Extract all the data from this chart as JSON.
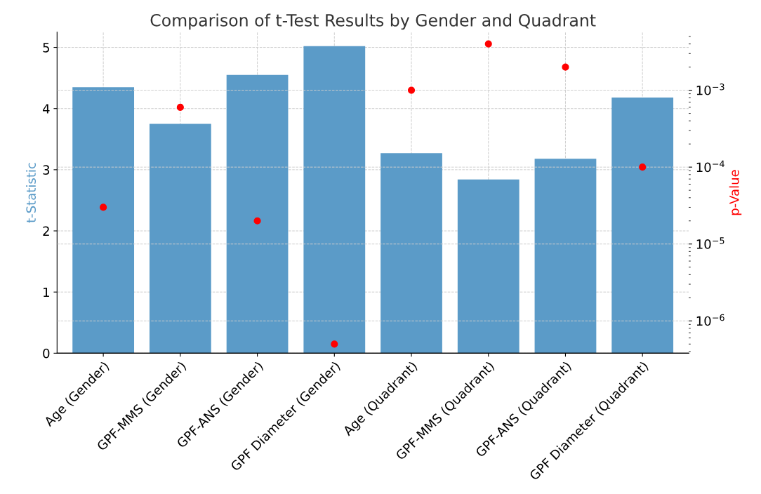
{
  "chart_data": {
    "type": "bar",
    "title": "Comparison of t-Test Results by Gender and Quadrant",
    "categories": [
      "Age (Gender)",
      "GPF-MMS (Gender)",
      "GPF-ANS (Gender)",
      "GPF Diameter (Gender)",
      "Age (Quadrant)",
      "GPF-MMS (Quadrant)",
      "GPF-ANS (Quadrant)",
      "GPF Diameter (Quadrant)"
    ],
    "series": [
      {
        "color": "#5b9bc8",
        "values": [
          4.35,
          3.75,
          4.55,
          5.02,
          3.27,
          2.84,
          3.18,
          4.18
        ]
      },
      {
        "type": "scatter",
        "axis": "y2",
        "color": "#ff0000",
        "values": [
          3e-05,
          0.0006,
          2e-05,
          5e-07,
          0.001,
          0.004,
          0.002,
          0.0001
        ]
      }
    ],
    "ylabel": "t-Statistic",
    "y2label": "p-Value",
    "ylim": [
      0,
      5.25
    ],
    "yticks": [
      0,
      1,
      2,
      3,
      4,
      5
    ],
    "log": "y2",
    "y2lim": [
      3.8e-07,
      0.0057
    ],
    "y2ticks": [
      {
        "value": 1e-06,
        "label": "10$^{−6}$"
      },
      {
        "value": 1e-05,
        "label": "10$^{−5}$"
      },
      {
        "value": 0.0001,
        "label": "10$^{−4}$"
      },
      {
        "value": 0.001,
        "label": "10$^{−3}$"
      }
    ],
    "grid": true,
    "marker": "circle",
    "legend": false
  }
}
